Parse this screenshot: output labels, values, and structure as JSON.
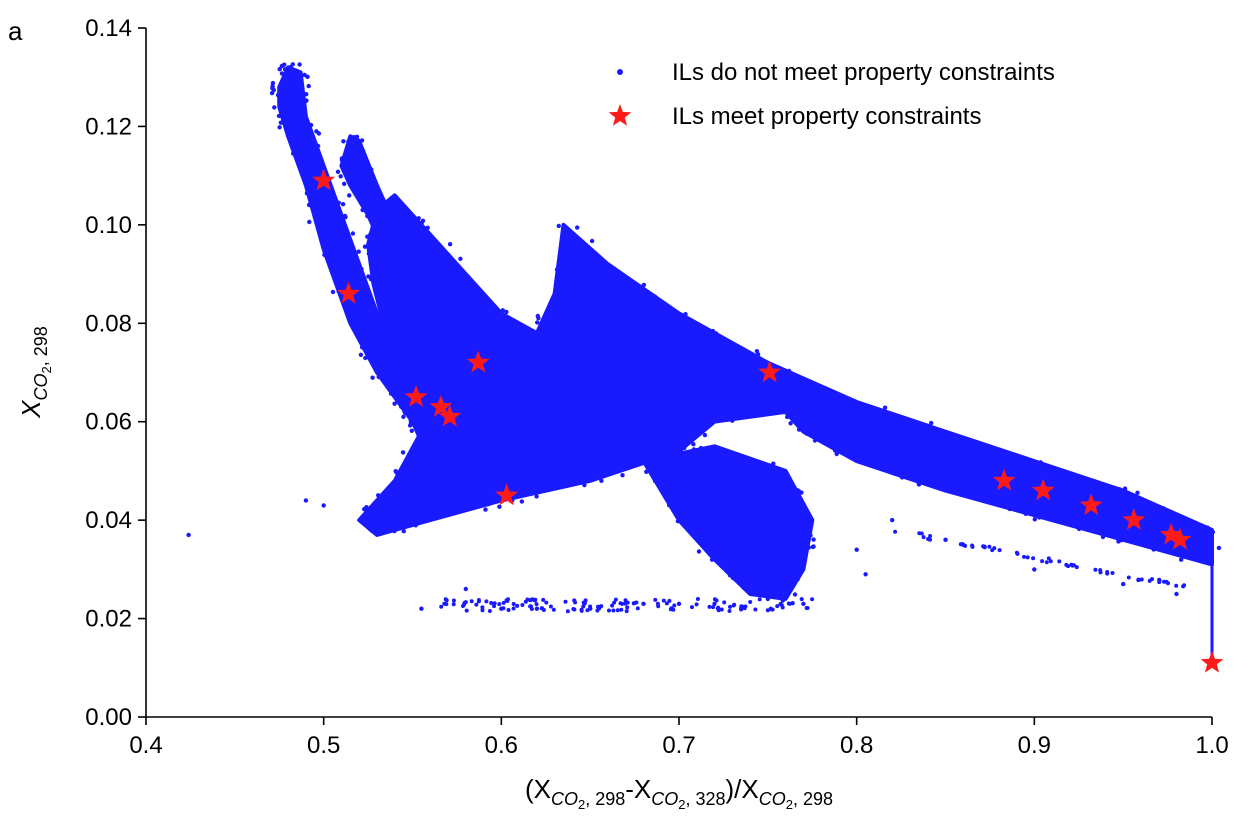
{
  "chart_data": {
    "type": "scatter",
    "panel_label": "a",
    "xlabel": "(X_{CO2,298}-X_{CO2,328})/X_{CO2,298}",
    "ylabel": "X_{CO2,298}",
    "xlim": [
      0.4,
      1.0
    ],
    "ylim": [
      0.0,
      0.14
    ],
    "x_ticks": [
      "0.4",
      "0.5",
      "0.6",
      "0.7",
      "0.8",
      "0.9",
      "1.0"
    ],
    "y_ticks": [
      "0.00",
      "0.02",
      "0.04",
      "0.06",
      "0.08",
      "0.10",
      "0.12",
      "0.14"
    ],
    "grid": false,
    "legend_position": "top-right",
    "series": [
      {
        "name": "ILs do not meet property constraints",
        "marker": "dot",
        "color": "#1a1aff",
        "regions": [
          {
            "shape": "polygon",
            "points": [
              [
                0.475,
                0.128
              ],
              [
                0.48,
                0.132
              ],
              [
                0.487,
                0.131
              ],
              [
                0.49,
                0.122
              ],
              [
                0.5,
                0.112
              ],
              [
                0.512,
                0.1
              ],
              [
                0.52,
                0.092
              ],
              [
                0.53,
                0.082
              ],
              [
                0.54,
                0.074
              ],
              [
                0.555,
                0.068
              ],
              [
                0.57,
                0.062
              ],
              [
                0.58,
                0.056
              ],
              [
                0.575,
                0.05
              ],
              [
                0.56,
                0.052
              ],
              [
                0.55,
                0.06
              ],
              [
                0.54,
                0.065
              ],
              [
                0.53,
                0.07
              ],
              [
                0.515,
                0.08
              ],
              [
                0.5,
                0.095
              ],
              [
                0.49,
                0.108
              ],
              [
                0.48,
                0.118
              ],
              [
                0.475,
                0.124
              ]
            ]
          },
          {
            "shape": "polygon",
            "points": [
              [
                0.51,
                0.112
              ],
              [
                0.515,
                0.118
              ],
              [
                0.52,
                0.117
              ],
              [
                0.53,
                0.108
              ],
              [
                0.54,
                0.1
              ],
              [
                0.55,
                0.092
              ],
              [
                0.56,
                0.084
              ],
              [
                0.57,
                0.078
              ],
              [
                0.58,
                0.072
              ],
              [
                0.59,
                0.066
              ],
              [
                0.595,
                0.06
              ],
              [
                0.585,
                0.058
              ],
              [
                0.575,
                0.063
              ],
              [
                0.565,
                0.07
              ],
              [
                0.555,
                0.078
              ],
              [
                0.545,
                0.086
              ],
              [
                0.535,
                0.094
              ],
              [
                0.525,
                0.102
              ],
              [
                0.515,
                0.108
              ]
            ]
          },
          {
            "shape": "polygon",
            "points": [
              [
                0.525,
                0.096
              ],
              [
                0.53,
                0.103
              ],
              [
                0.54,
                0.106
              ],
              [
                0.56,
                0.098
              ],
              [
                0.58,
                0.09
              ],
              [
                0.6,
                0.082
              ],
              [
                0.62,
                0.078
              ],
              [
                0.63,
                0.086
              ],
              [
                0.635,
                0.1
              ],
              [
                0.66,
                0.092
              ],
              [
                0.7,
                0.082
              ],
              [
                0.75,
                0.072
              ],
              [
                0.8,
                0.064
              ],
              [
                0.85,
                0.058
              ],
              [
                0.9,
                0.052
              ],
              [
                0.95,
                0.046
              ],
              [
                1.0,
                0.038
              ],
              [
                1.0,
                0.031
              ],
              [
                0.95,
                0.036
              ],
              [
                0.9,
                0.041
              ],
              [
                0.85,
                0.046
              ],
              [
                0.8,
                0.052
              ],
              [
                0.77,
                0.058
              ],
              [
                0.76,
                0.062
              ],
              [
                0.72,
                0.06
              ],
              [
                0.7,
                0.054
              ],
              [
                0.65,
                0.048
              ],
              [
                0.6,
                0.044
              ],
              [
                0.56,
                0.04
              ],
              [
                0.53,
                0.037
              ],
              [
                0.52,
                0.04
              ],
              [
                0.54,
                0.048
              ],
              [
                0.555,
                0.058
              ],
              [
                0.545,
                0.068
              ],
              [
                0.535,
                0.078
              ],
              [
                0.528,
                0.088
              ]
            ]
          },
          {
            "shape": "polygon",
            "points": [
              [
                0.68,
                0.052
              ],
              [
                0.72,
                0.055
              ],
              [
                0.76,
                0.05
              ],
              [
                0.775,
                0.04
              ],
              [
                0.77,
                0.03
              ],
              [
                0.76,
                0.024
              ],
              [
                0.74,
                0.025
              ],
              [
                0.72,
                0.032
              ],
              [
                0.7,
                0.04
              ]
            ]
          }
        ],
        "outliers": [
          [
            0.424,
            0.037
          ],
          [
            0.49,
            0.044
          ],
          [
            0.5,
            0.043
          ],
          [
            0.555,
            0.022
          ],
          [
            0.58,
            0.026
          ],
          [
            0.6,
            0.022
          ],
          [
            0.62,
            0.022
          ],
          [
            0.65,
            0.022
          ],
          [
            0.68,
            0.023
          ],
          [
            0.7,
            0.023
          ],
          [
            0.72,
            0.023
          ],
          [
            0.75,
            0.024
          ],
          [
            0.77,
            0.023
          ],
          [
            0.805,
            0.029
          ],
          [
            0.8,
            0.034
          ],
          [
            0.82,
            0.04
          ],
          [
            0.85,
            0.036
          ],
          [
            0.86,
            0.035
          ],
          [
            0.9,
            0.03
          ],
          [
            0.95,
            0.027
          ],
          [
            0.98,
            0.025
          ],
          [
            0.75,
            0.03
          ],
          [
            0.76,
            0.028
          ],
          [
            0.73,
            0.036
          ],
          [
            0.71,
            0.045
          ]
        ]
      },
      {
        "name": "ILs meet property constraints",
        "marker": "star",
        "color": "#ff1a1a",
        "x": [
          0.5,
          0.514,
          0.552,
          0.566,
          0.571,
          0.587,
          0.603,
          0.751,
          0.883,
          0.905,
          0.932,
          0.956,
          0.977,
          0.982,
          1.0
        ],
        "y": [
          0.109,
          0.086,
          0.065,
          0.063,
          0.061,
          0.072,
          0.045,
          0.07,
          0.048,
          0.046,
          0.043,
          0.04,
          0.037,
          0.036,
          0.011
        ]
      }
    ]
  },
  "legend": {
    "item1": "ILs do not meet property constraints",
    "item2": "ILs meet property constraints"
  },
  "labels": {
    "panel": "a",
    "y_main": "X",
    "y_sub": "CO",
    "y_sub2": "2",
    "y_sub_rest": ", 298",
    "x_open": "(X",
    "x_sub1": "CO",
    "x_sub1_2": "2",
    "x_sub1_rest": ", 298",
    "x_dash": "-X",
    "x_sub2": "CO",
    "x_sub2_2": "2",
    "x_sub2_rest": ", 328",
    "x_close": ")/X",
    "x_sub3": "CO",
    "x_sub3_2": "2",
    "x_sub3_rest": ", 298"
  }
}
